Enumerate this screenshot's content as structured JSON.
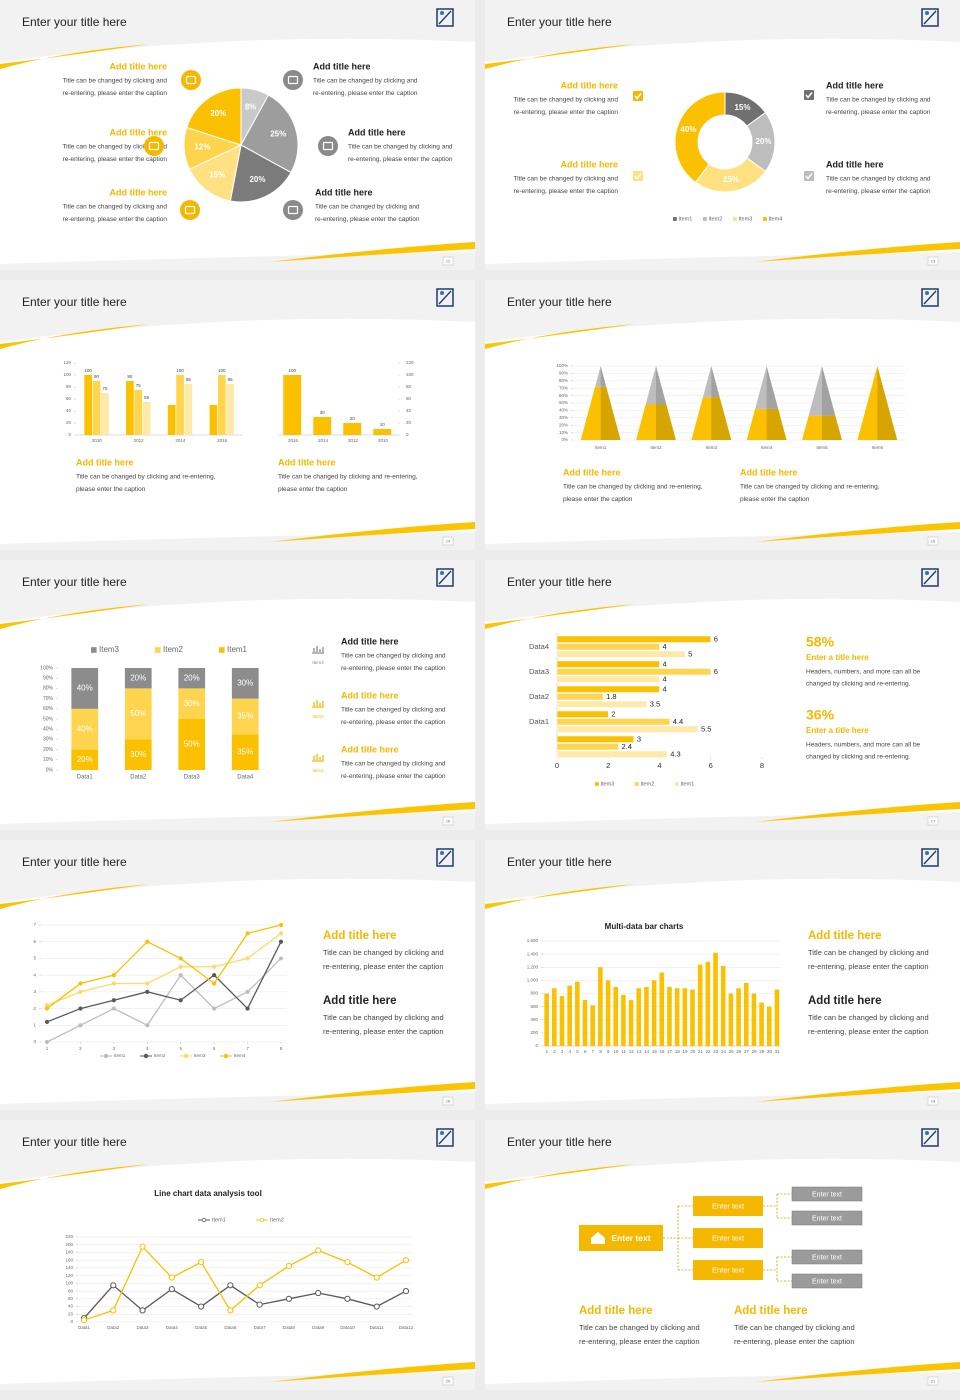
{
  "slides": [
    {
      "title": "Enter your title here",
      "page": 12,
      "callouts": [
        {
          "heading": "Add title here",
          "body": [
            "Title can be changed by clicking and",
            "re-entering, please enter the caption"
          ]
        },
        {
          "heading": "Add title here",
          "body": [
            "Title can be changed by clicking and",
            "re-entering, please enter the caption"
          ]
        },
        {
          "heading": "Add title here",
          "body": [
            "Title can be changed by clicking and",
            "re-entering, please enter the caption"
          ]
        },
        {
          "heading": "Add title here",
          "body": [
            "Title can be changed by clicking and",
            "re-entering, please enter the caption"
          ]
        },
        {
          "heading": "Add title here",
          "body": [
            "Title can be changed by clicking and",
            "re-entering, please enter the caption"
          ]
        },
        {
          "heading": "Add title here",
          "body": [
            "Title can be changed by clicking and",
            "re-entering, please enter the caption"
          ]
        }
      ]
    },
    {
      "title": "Enter your title here",
      "page": 13,
      "callouts": [
        {
          "heading": "Add title here",
          "body": [
            "Title can be changed by clicking and",
            "re-entering, please enter the caption"
          ]
        },
        {
          "heading": "Add title here",
          "body": [
            "Title can be changed by clicking and",
            "re-entering, please enter the caption"
          ]
        },
        {
          "heading": "Add title here",
          "body": [
            "Title can be changed by clicking and",
            "re-entering, please enter the caption"
          ]
        },
        {
          "heading": "Add title here",
          "body": [
            "Title can be changed by clicking and",
            "re-entering, please enter the caption"
          ]
        }
      ]
    },
    {
      "title": "Enter your title here",
      "page": 14,
      "callouts": [
        {
          "heading": "Add title here",
          "body": [
            "Title can be changed by clicking and re-entering,",
            "please enter the caption"
          ]
        },
        {
          "heading": "Add title here",
          "body": [
            "Title can be changed by clicking and re-entering,",
            "please enter the caption"
          ]
        }
      ]
    },
    {
      "title": "Enter your title here",
      "page": 15,
      "callouts": [
        {
          "heading": "Add title here",
          "body": [
            "Title can be changed by clicking and re-entering,",
            "please enter the caption"
          ]
        },
        {
          "heading": "Add title here",
          "body": [
            "Title can be changed by clicking and re-entering,",
            "please enter the caption"
          ]
        }
      ]
    },
    {
      "title": "Enter your title here",
      "page": 16,
      "icon_labels": [
        "Item3",
        "Item2",
        "Item1"
      ],
      "callouts": [
        {
          "heading": "Add title here",
          "body": [
            "Title can be changed by clicking and",
            "re-entering, please enter the caption"
          ]
        },
        {
          "heading": "Add title here",
          "body": [
            "Title can be changed by clicking and",
            "re-entering, please enter the caption"
          ]
        },
        {
          "heading": "Add title here",
          "body": [
            "Title can be changed by clicking and",
            "re-entering, please enter the caption"
          ]
        }
      ]
    },
    {
      "title": "Enter your title here",
      "page": 17,
      "stats": [
        {
          "value": "58%",
          "heading": "Enter a title here",
          "body": [
            "Headers, numbers, and more can all be",
            "changed by clicking and re-entering."
          ]
        },
        {
          "value": "36%",
          "heading": "Enter a title here",
          "body": [
            "Headers, numbers, and more can all be",
            "changed by clicking and re-entering."
          ]
        }
      ]
    },
    {
      "title": "Enter your title here",
      "page": 18,
      "callouts": [
        {
          "heading": "Add title here",
          "body": [
            "Title can be changed by clicking and",
            "re-entering, please enter the caption"
          ]
        },
        {
          "heading": "Add title here",
          "body": [
            "Title can be changed by clicking and",
            "re-entering, please enter the caption"
          ]
        }
      ]
    },
    {
      "title": "Enter your title here",
      "page": 19,
      "callouts": [
        {
          "heading": "Add title here",
          "body": [
            "Title can be changed by clicking and",
            "re-entering, please enter the caption"
          ]
        },
        {
          "heading": "Add title here",
          "body": [
            "Title can be changed by clicking and",
            "re-entering, please enter the caption"
          ]
        }
      ]
    },
    {
      "title": "Enter your title here",
      "page": 20
    },
    {
      "title": "Enter your title here",
      "page": 21,
      "nodes": [
        "Enter text",
        "Enter text",
        "Enter text",
        "Enter text",
        "Enter text",
        "Enter text",
        "Enter text",
        "Enter text"
      ],
      "callouts": [
        {
          "heading": "Add title here",
          "body": [
            "Title can be changed by clicking and",
            "re-entering, please enter the caption"
          ]
        },
        {
          "heading": "Add title here",
          "body": [
            "Title can be changed by clicking and",
            "re-entering, please enter the caption"
          ]
        }
      ]
    }
  ],
  "chart_data": [
    {
      "type": "pie",
      "values": [
        8,
        25,
        20,
        15,
        12,
        20
      ],
      "value_labels": [
        "8%",
        "25%",
        "20%",
        "15%",
        "12%",
        "20%"
      ],
      "colors": [
        "#c9c9c9",
        "#9d9d9d",
        "#7b7b7b",
        "#ffe083",
        "#ffd44d",
        "#fbc000"
      ]
    },
    {
      "type": "donut",
      "categories": [
        "Item1",
        "Item2",
        "Item3",
        "Item4"
      ],
      "values": [
        15,
        20,
        25,
        40
      ],
      "value_labels": [
        "15%",
        "20%",
        "25%",
        "40%"
      ],
      "colors": [
        "#707070",
        "#bdbdbd",
        "#ffe182",
        "#fbc000"
      ]
    },
    {
      "type": "bar",
      "categories": [
        2010,
        2012,
        2014,
        2016
      ],
      "series": [
        {
          "color": "#fbc000",
          "values": [
            100,
            90,
            50,
            50
          ],
          "value_labels": [
            "100",
            "90",
            null,
            null
          ]
        },
        {
          "color": "#ffd54f",
          "values": [
            90,
            75,
            100,
            100
          ],
          "value_labels": [
            "90",
            "75",
            "100",
            "100"
          ]
        },
        {
          "color": "#ffe9a8",
          "values": [
            70,
            55,
            85,
            85
          ],
          "value_labels": [
            "70",
            "55",
            "85",
            "85"
          ]
        }
      ],
      "ylim": [
        0,
        120
      ],
      "yticks": [
        0,
        20,
        40,
        60,
        80,
        100,
        120
      ]
    },
    {
      "type": "bar",
      "categories": [
        2016,
        2014,
        2012,
        2010
      ],
      "series": [
        {
          "color": "#fbc000",
          "values": [
            100,
            30,
            20,
            10
          ]
        }
      ],
      "ylim": [
        0,
        120
      ],
      "yticks": [
        0,
        20,
        40,
        60,
        80,
        100,
        120
      ],
      "data_labels": true
    },
    {
      "type": "pyramid",
      "categories": [
        "Item1",
        "Item2",
        "Item3",
        "Item4",
        "Item5",
        "Item6"
      ],
      "series": [
        {
          "color": "#fbc000",
          "values": [
            72,
            48,
            58,
            42,
            33,
            100
          ]
        },
        {
          "color": "#bdbdbd",
          "values": [
            28,
            52,
            42,
            58,
            67,
            0
          ]
        }
      ],
      "ylim": [
        0,
        100
      ],
      "yticks": [
        {
          "value": 0,
          "label": "0%"
        },
        {
          "value": 10,
          "label": "10%"
        },
        {
          "value": 20,
          "label": "20%"
        },
        {
          "value": 30,
          "label": "30%"
        },
        {
          "value": 40,
          "label": "40%"
        },
        {
          "value": 50,
          "label": "50%"
        },
        {
          "value": 60,
          "label": "60%"
        },
        {
          "value": 70,
          "label": "70%"
        },
        {
          "value": 80,
          "label": "80%"
        },
        {
          "value": 90,
          "label": "90%"
        },
        {
          "value": 100,
          "label": "100%"
        }
      ],
      "grid": true
    },
    {
      "type": "stacked_bar",
      "categories": [
        "Data1",
        "Data2",
        "Data3",
        "Data4"
      ],
      "series": [
        {
          "name": "Item1",
          "color": "#fbc000",
          "values": [
            20,
            30,
            50,
            35
          ],
          "value_labels": [
            "20%",
            "30%",
            "50%",
            "35%"
          ]
        },
        {
          "name": "Item2",
          "color": "#ffd54f",
          "values": [
            40,
            50,
            30,
            35
          ],
          "value_labels": [
            "40%",
            "50%",
            "30%",
            "35%"
          ]
        },
        {
          "name": "Item3",
          "color": "#8c8c8c",
          "values": [
            40,
            20,
            20,
            30
          ],
          "value_labels": [
            "40%",
            "20%",
            "20%",
            "30%"
          ]
        }
      ],
      "ylim": [
        0,
        100
      ],
      "yticks": [
        {
          "value": 0,
          "label": "0%"
        },
        {
          "value": 10,
          "label": "10%"
        },
        {
          "value": 20,
          "label": "20%"
        },
        {
          "value": 30,
          "label": "30%"
        },
        {
          "value": 40,
          "label": "40%"
        },
        {
          "value": 50,
          "label": "50%"
        },
        {
          "value": 60,
          "label": "60%"
        },
        {
          "value": 70,
          "label": "70%"
        },
        {
          "value": 80,
          "label": "80%"
        },
        {
          "value": 90,
          "label": "90%"
        },
        {
          "value": 100,
          "label": "100%"
        }
      ]
    },
    {
      "type": "hbar",
      "categories": [
        "Data4",
        "Data3",
        "Data2",
        "Data1",
        null
      ],
      "series": [
        {
          "name": "Item3",
          "color": "#fbc000",
          "values": [
            6,
            4,
            4,
            2,
            3
          ]
        },
        {
          "name": "Item2",
          "color": "#ffd54f",
          "values": [
            4,
            6,
            1.8,
            4.4,
            2.4
          ]
        },
        {
          "name": "Item1",
          "color": "#ffe9a8",
          "values": [
            5,
            4,
            3.5,
            5.5,
            4.3
          ]
        }
      ],
      "xlim": [
        0,
        8
      ],
      "xticks": [
        0,
        2,
        4,
        6,
        8
      ],
      "data_labels": true
    },
    {
      "type": "line",
      "x": [
        1,
        2,
        3,
        4,
        5,
        6,
        7,
        8
      ],
      "xlim": [
        1,
        8
      ],
      "xticks": [
        1,
        2,
        3,
        4,
        5,
        6,
        7,
        8
      ],
      "ylim": [
        0,
        7
      ],
      "yticks": [
        0,
        1,
        2,
        3,
        4,
        5,
        6,
        7
      ],
      "grid": true,
      "marker": "filled",
      "series": [
        {
          "name": "Item1",
          "color": "#bdbdbd",
          "values": [
            0,
            1,
            2,
            1,
            4,
            2,
            3,
            5
          ]
        },
        {
          "name": "Item2",
          "color": "#595959",
          "values": [
            1.2,
            2,
            2.5,
            3,
            2.5,
            4,
            2,
            6
          ]
        },
        {
          "name": "Item3",
          "color": "#ffd966",
          "values": [
            2.2,
            3,
            3.5,
            3.5,
            4.5,
            4.5,
            5,
            6.5
          ]
        },
        {
          "name": "Item4",
          "color": "#fbc000",
          "values": [
            2,
            3.5,
            4,
            6,
            5,
            3.5,
            6.5,
            7
          ]
        }
      ]
    },
    {
      "type": "bar",
      "title": "Multi-data bar charts",
      "categories": [
        1,
        2,
        3,
        4,
        5,
        6,
        7,
        8,
        9,
        10,
        11,
        12,
        13,
        14,
        15,
        16,
        17,
        18,
        19,
        20,
        21,
        22,
        23,
        24,
        25,
        26,
        27,
        28,
        29,
        30,
        31
      ],
      "series": [
        {
          "color": "#fbc000",
          "values": [
            800,
            880,
            760,
            920,
            980,
            700,
            620,
            1200,
            1000,
            900,
            780,
            700,
            880,
            900,
            1000,
            1120,
            900,
            880,
            880,
            860,
            1240,
            1280,
            1420,
            1220,
            800,
            880,
            960,
            800,
            660,
            600,
            860
          ]
        }
      ],
      "ylim": [
        0,
        1600
      ],
      "yticks": [
        0,
        200,
        400,
        600,
        800,
        {
          "value": 1000,
          "label": "1,000"
        },
        {
          "value": 1200,
          "label": "1,200"
        },
        {
          "value": 1400,
          "label": "1,400"
        },
        {
          "value": 1600,
          "label": "1,600"
        }
      ],
      "grid": true
    },
    {
      "type": "line",
      "title": "Line chart data analysis tool",
      "categories": [
        "Data1",
        "Data2",
        "Data3",
        "Data4",
        "Data5",
        "Data6",
        "Data7",
        "Data8",
        "Data9",
        "Data10",
        "Data11",
        "Data12"
      ],
      "ylim": [
        0,
        220
      ],
      "yticks": [
        0,
        20,
        40,
        60,
        80,
        100,
        120,
        140,
        160,
        180,
        200,
        220
      ],
      "grid": true,
      "marker": "hollow",
      "series": [
        {
          "name": "Item1",
          "color": "#595959",
          "values": [
            10,
            95,
            30,
            85,
            40,
            95,
            45,
            60,
            75,
            60,
            40,
            80
          ]
        },
        {
          "name": "Item2",
          "color": "#fbc000",
          "values": [
            5,
            30,
            195,
            115,
            155,
            30,
            95,
            145,
            185,
            155,
            115,
            160
          ]
        }
      ]
    }
  ]
}
